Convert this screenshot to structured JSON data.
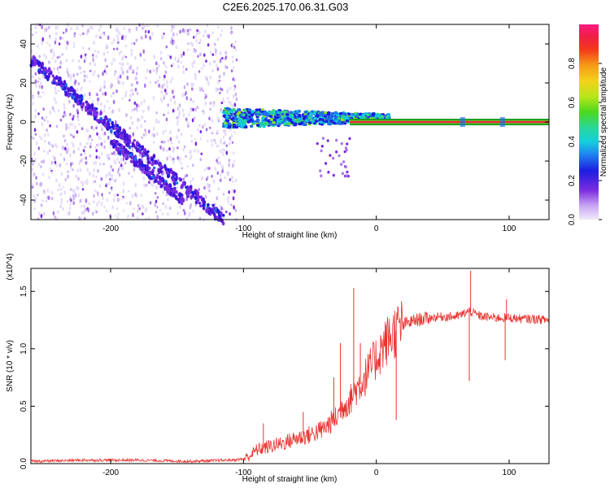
{
  "title": "C2E6.2025.170.06.31.G03",
  "chart_data": [
    {
      "type": "heatmap",
      "xlabel": "Height of straight line (km)",
      "ylabel": "Frequency (Hz)",
      "xlim": [
        -260,
        130
      ],
      "ylim": [
        -50,
        50
      ],
      "xticks": [
        -200,
        -100,
        0,
        100
      ],
      "yticks": [
        40,
        20,
        0,
        -20,
        -40
      ],
      "colorbar": {
        "label": "Normalized spectral amplitude",
        "range": [
          0,
          1
        ],
        "ticks": [
          0.0,
          0.2,
          0.4,
          0.6,
          0.8
        ]
      },
      "features": [
        {
          "segment": "diagonal-track-1",
          "x": [
            -260,
            -115
          ],
          "y": [
            32,
            -50
          ]
        },
        {
          "segment": "diagonal-track-2",
          "x": [
            -200,
            -145
          ],
          "y": [
            -10,
            -40
          ]
        },
        {
          "segment": "scatter-noise",
          "x": [
            -260,
            -105
          ],
          "y": [
            -50,
            50
          ]
        },
        {
          "segment": "noisy-band",
          "x": [
            -115,
            10
          ],
          "y": [
            -4,
            12
          ]
        },
        {
          "segment": "zero-line",
          "x": [
            -20,
            130
          ],
          "y": [
            0,
            0
          ]
        }
      ]
    },
    {
      "type": "line",
      "xlabel": "Height of straight line (km)",
      "ylabel": "SNR (10 * v/v)",
      "multiplier": "(x10^4)",
      "xlim": [
        -260,
        130
      ],
      "ylim": [
        0,
        1.7
      ],
      "xticks": [
        -200,
        -100,
        0,
        100
      ],
      "yticks": [
        0.0,
        0.5,
        1.0,
        1.5
      ],
      "series": [
        {
          "color": "#e8322e",
          "x": [
            -260,
            -220,
            -180,
            -140,
            -110,
            -100,
            -95,
            -90,
            -80,
            -70,
            -60,
            -50,
            -40,
            -30,
            -25,
            -20,
            -15,
            -10,
            -5,
            0,
            5,
            10,
            15,
            20,
            30,
            40,
            50,
            60,
            65,
            70,
            75,
            80,
            90,
            100,
            110,
            120,
            130
          ],
          "values": [
            0.02,
            0.03,
            0.03,
            0.02,
            0.03,
            0.04,
            0.07,
            0.12,
            0.15,
            0.18,
            0.22,
            0.25,
            0.3,
            0.4,
            0.5,
            0.55,
            0.65,
            0.72,
            0.82,
            0.92,
            1.02,
            1.1,
            1.16,
            1.21,
            1.25,
            1.27,
            1.28,
            1.28,
            1.3,
            1.33,
            1.3,
            1.28,
            1.27,
            1.27,
            1.26,
            1.26,
            1.25
          ]
        }
      ],
      "spikes": [
        {
          "x": -85,
          "value": 0.35
        },
        {
          "x": -55,
          "value": 0.45
        },
        {
          "x": -32,
          "value": 0.75
        },
        {
          "x": -27,
          "value": 1.05
        },
        {
          "x": -17,
          "value": 1.53
        },
        {
          "x": -12,
          "value": 1.05
        },
        {
          "x": 15,
          "value": 0.38
        },
        {
          "x": 70,
          "value": 0.72
        },
        {
          "x": 71,
          "value": 1.68
        },
        {
          "x": 97,
          "value": 0.9
        },
        {
          "x": 98,
          "value": 1.43
        }
      ]
    }
  ]
}
